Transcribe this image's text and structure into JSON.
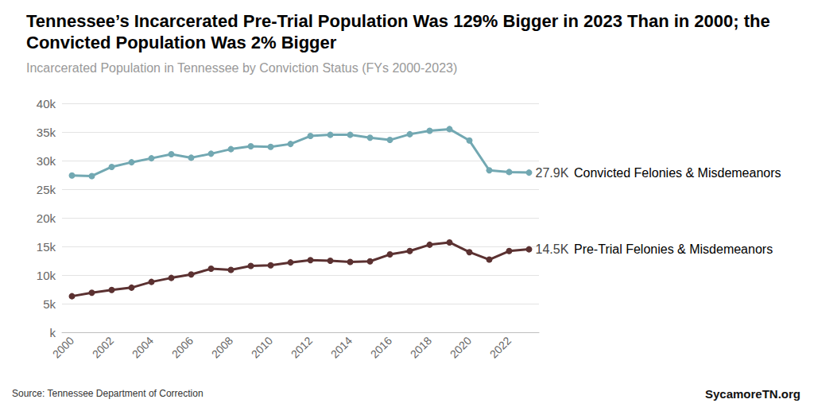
{
  "chart_data": {
    "type": "line",
    "title": "Tennessee’s Incarcerated Pre-Trial Population Was 129% Bigger in 2023 Than in 2000; the Convicted Population Was 2% Bigger",
    "subtitle": "Incarcerated Population in Tennessee by Conviction Status (FYs 2000-2023)",
    "source": "Source: Tennessee Department of Correction",
    "credit": "SycamoreTN.org",
    "categories": [
      "2000",
      null,
      "2002",
      null,
      "2004",
      null,
      "2006",
      null,
      "2008",
      null,
      "2010",
      null,
      "2012",
      null,
      "2014",
      null,
      "2016",
      null,
      "2018",
      null,
      "2020",
      null,
      "2022",
      null
    ],
    "series": [
      {
        "name": "Convicted Felonies & Misdemeanors",
        "color": "#72a8b2",
        "end_label": "27.9K",
        "values": [
          27400,
          27300,
          28900,
          29700,
          30400,
          31100,
          30500,
          31200,
          32000,
          32500,
          32400,
          32900,
          34300,
          34500,
          34500,
          34000,
          33600,
          34600,
          35200,
          35500,
          33500,
          28300,
          28000,
          27900
        ]
      },
      {
        "name": "Pre-Trial Felonies & Misdemeanors",
        "color": "#5b3131",
        "end_label": "14.5K",
        "values": [
          6300,
          6900,
          7400,
          7800,
          8800,
          9500,
          10100,
          11100,
          10900,
          11600,
          11700,
          12200,
          12600,
          12500,
          12300,
          12400,
          13600,
          14200,
          15300,
          15700,
          14000,
          12700,
          14200,
          14500
        ]
      }
    ],
    "ylim": [
      0,
      40000
    ],
    "yticks": [
      {
        "value": 0,
        "label": "k"
      },
      {
        "value": 5000,
        "label": "5k"
      },
      {
        "value": 10000,
        "label": "10k"
      },
      {
        "value": 15000,
        "label": "15k"
      },
      {
        "value": 20000,
        "label": "20k"
      },
      {
        "value": 25000,
        "label": "25k"
      },
      {
        "value": 30000,
        "label": "30k"
      },
      {
        "value": 35000,
        "label": "35k"
      },
      {
        "value": 40000,
        "label": "40k"
      }
    ],
    "grid": true,
    "marker": "circle"
  }
}
